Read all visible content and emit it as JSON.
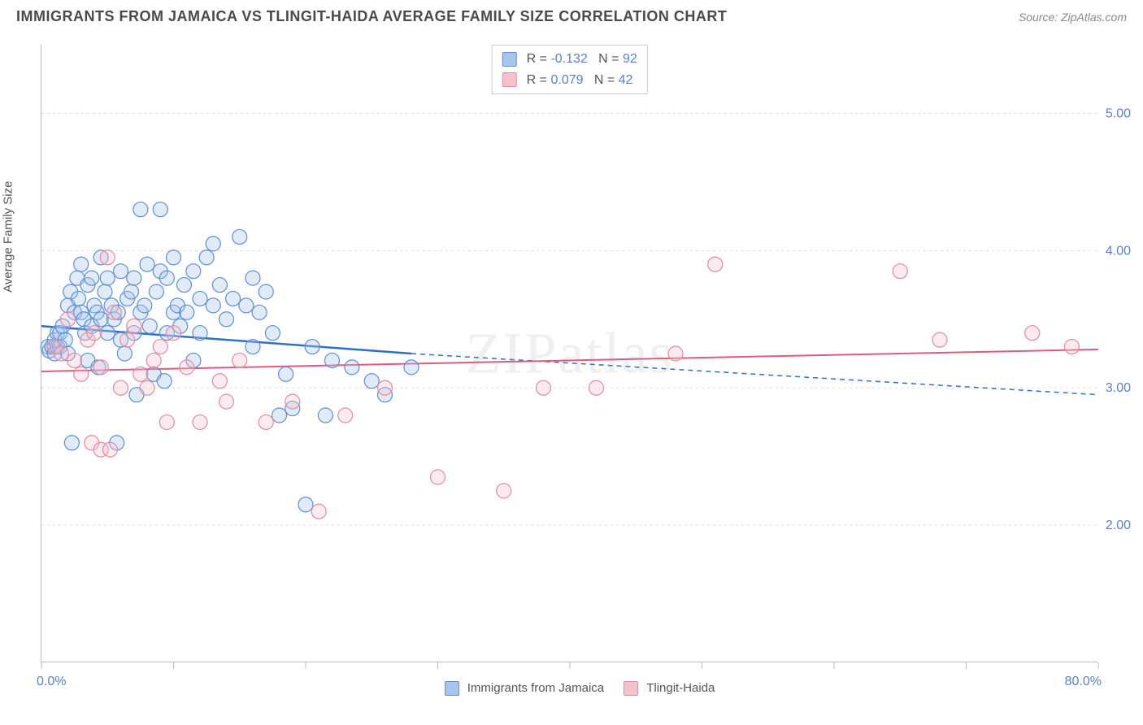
{
  "title": "IMMIGRANTS FROM JAMAICA VS TLINGIT-HAIDA AVERAGE FAMILY SIZE CORRELATION CHART",
  "source": "Source: ZipAtlas.com",
  "watermark": "ZIPatlas",
  "ylabel": "Average Family Size",
  "chart": {
    "type": "scatter",
    "xlim": [
      0,
      80
    ],
    "ylim": [
      1.0,
      5.5
    ],
    "xticks": [
      0,
      10,
      20,
      30,
      40,
      50,
      60,
      70,
      80
    ],
    "yticks": [
      2.0,
      3.0,
      4.0,
      5.0
    ],
    "xmin_label": "0.0%",
    "xmax_label": "80.0%",
    "ytick_labels": [
      "2.00",
      "3.00",
      "4.00",
      "5.00"
    ],
    "background_color": "#ffffff",
    "grid_color": "#dddddd",
    "marker_radius": 9,
    "marker_stroke_width": 1.2,
    "marker_fill_opacity": 0.35,
    "series": [
      {
        "name": "Immigrants from Jamaica",
        "color_fill": "#a8c5ec",
        "color_stroke": "#5b8fd6",
        "line_color": "#2e6fc9",
        "R": "-0.132",
        "N": "92",
        "trend": {
          "x1": 0,
          "y1": 3.45,
          "x2": 28,
          "y2": 3.25,
          "dash_x2": 80,
          "dash_y2": 2.95
        },
        "points": [
          [
            0.5,
            3.3
          ],
          [
            0.6,
            3.27
          ],
          [
            0.8,
            3.3
          ],
          [
            1.0,
            3.25
          ],
          [
            1.0,
            3.35
          ],
          [
            1.2,
            3.3
          ],
          [
            1.2,
            3.4
          ],
          [
            1.4,
            3.4
          ],
          [
            1.4,
            3.3
          ],
          [
            1.6,
            3.45
          ],
          [
            1.8,
            3.35
          ],
          [
            2.0,
            3.6
          ],
          [
            2.0,
            3.25
          ],
          [
            2.2,
            3.7
          ],
          [
            2.3,
            2.6
          ],
          [
            2.5,
            3.55
          ],
          [
            2.7,
            3.8
          ],
          [
            2.8,
            3.65
          ],
          [
            3.0,
            3.55
          ],
          [
            3.0,
            3.9
          ],
          [
            3.2,
            3.5
          ],
          [
            3.3,
            3.4
          ],
          [
            3.5,
            3.75
          ],
          [
            3.5,
            3.2
          ],
          [
            3.8,
            3.8
          ],
          [
            3.8,
            3.45
          ],
          [
            4.0,
            3.6
          ],
          [
            4.2,
            3.55
          ],
          [
            4.3,
            3.15
          ],
          [
            4.5,
            3.95
          ],
          [
            4.5,
            3.5
          ],
          [
            4.8,
            3.7
          ],
          [
            5.0,
            3.4
          ],
          [
            5.0,
            3.8
          ],
          [
            5.3,
            3.6
          ],
          [
            5.5,
            3.5
          ],
          [
            5.7,
            2.6
          ],
          [
            5.8,
            3.55
          ],
          [
            6.0,
            3.85
          ],
          [
            6.0,
            3.35
          ],
          [
            6.3,
            3.25
          ],
          [
            6.5,
            3.65
          ],
          [
            6.8,
            3.7
          ],
          [
            7.0,
            3.4
          ],
          [
            7.0,
            3.8
          ],
          [
            7.2,
            2.95
          ],
          [
            7.5,
            4.3
          ],
          [
            7.5,
            3.55
          ],
          [
            7.8,
            3.6
          ],
          [
            8.0,
            3.9
          ],
          [
            8.2,
            3.45
          ],
          [
            8.5,
            3.1
          ],
          [
            8.7,
            3.7
          ],
          [
            9.0,
            3.85
          ],
          [
            9.0,
            4.3
          ],
          [
            9.3,
            3.05
          ],
          [
            9.5,
            3.8
          ],
          [
            9.5,
            3.4
          ],
          [
            10.0,
            3.95
          ],
          [
            10.0,
            3.55
          ],
          [
            10.3,
            3.6
          ],
          [
            10.5,
            3.45
          ],
          [
            10.8,
            3.75
          ],
          [
            11.0,
            3.55
          ],
          [
            11.5,
            3.85
          ],
          [
            11.5,
            3.2
          ],
          [
            12.0,
            3.65
          ],
          [
            12.0,
            3.4
          ],
          [
            12.5,
            3.95
          ],
          [
            13.0,
            4.05
          ],
          [
            13.0,
            3.6
          ],
          [
            13.5,
            3.75
          ],
          [
            14.0,
            3.5
          ],
          [
            14.5,
            3.65
          ],
          [
            15.0,
            4.1
          ],
          [
            15.5,
            3.6
          ],
          [
            16.0,
            3.3
          ],
          [
            16.0,
            3.8
          ],
          [
            16.5,
            3.55
          ],
          [
            17.0,
            3.7
          ],
          [
            17.5,
            3.4
          ],
          [
            18.0,
            2.8
          ],
          [
            18.5,
            3.1
          ],
          [
            19.0,
            2.85
          ],
          [
            20.0,
            2.15
          ],
          [
            20.5,
            3.3
          ],
          [
            21.5,
            2.8
          ],
          [
            22.0,
            3.2
          ],
          [
            23.5,
            3.15
          ],
          [
            25.0,
            3.05
          ],
          [
            26.0,
            2.95
          ],
          [
            28.0,
            3.15
          ]
        ]
      },
      {
        "name": "Tlingit-Haida",
        "color_fill": "#f4c2cd",
        "color_stroke": "#e48ba0",
        "line_color": "#e05a7a",
        "R": "0.079",
        "N": "42",
        "trend": {
          "x1": 0,
          "y1": 3.12,
          "x2": 80,
          "y2": 3.28
        },
        "points": [
          [
            1.0,
            3.3
          ],
          [
            1.5,
            3.25
          ],
          [
            2.0,
            3.5
          ],
          [
            2.5,
            3.2
          ],
          [
            3.0,
            3.1
          ],
          [
            3.5,
            3.35
          ],
          [
            3.8,
            2.6
          ],
          [
            4.0,
            3.4
          ],
          [
            4.5,
            3.15
          ],
          [
            4.5,
            2.55
          ],
          [
            5.0,
            3.95
          ],
          [
            5.2,
            2.55
          ],
          [
            5.5,
            3.55
          ],
          [
            6.0,
            3.0
          ],
          [
            6.5,
            3.35
          ],
          [
            7.0,
            3.45
          ],
          [
            7.5,
            3.1
          ],
          [
            8.0,
            3.0
          ],
          [
            8.5,
            3.2
          ],
          [
            9.0,
            3.3
          ],
          [
            9.5,
            2.75
          ],
          [
            10.0,
            3.4
          ],
          [
            11.0,
            3.15
          ],
          [
            12.0,
            2.75
          ],
          [
            13.5,
            3.05
          ],
          [
            14.0,
            2.9
          ],
          [
            15.0,
            3.2
          ],
          [
            17.0,
            2.75
          ],
          [
            19.0,
            2.9
          ],
          [
            21.0,
            2.1
          ],
          [
            23.0,
            2.8
          ],
          [
            26.0,
            3.0
          ],
          [
            30.0,
            2.35
          ],
          [
            35.0,
            2.25
          ],
          [
            38.0,
            3.0
          ],
          [
            42.0,
            3.0
          ],
          [
            48.0,
            3.25
          ],
          [
            51.0,
            3.9
          ],
          [
            65.0,
            3.85
          ],
          [
            68.0,
            3.35
          ],
          [
            75.0,
            3.4
          ],
          [
            78.0,
            3.3
          ]
        ]
      }
    ]
  },
  "colors": {
    "axis_label": "#5b7fc7",
    "text": "#555555"
  }
}
